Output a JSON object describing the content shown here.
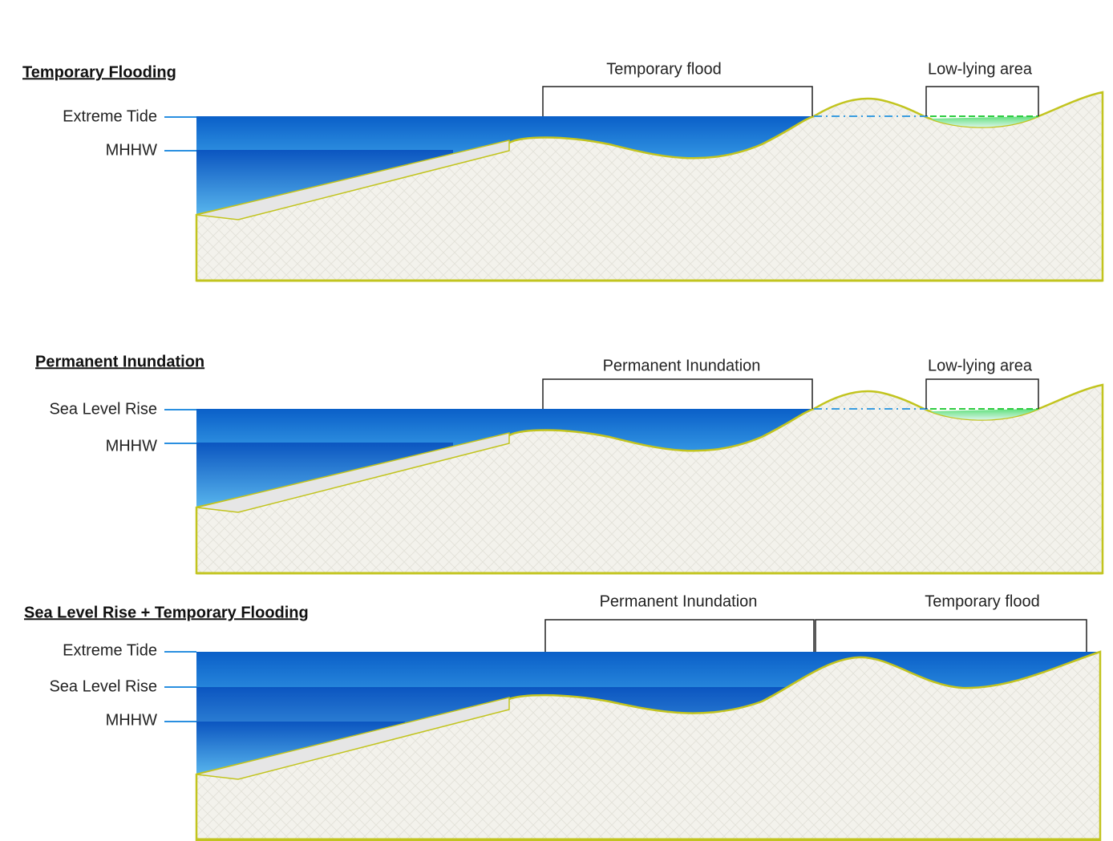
{
  "panels": [
    {
      "title": "Temporary Flooding",
      "levels": [
        "Extreme Tide",
        "MHHW"
      ],
      "brackets": [
        "Temporary flood",
        "Low-lying area"
      ]
    },
    {
      "title": "Permanent Inundation",
      "levels": [
        "Sea Level Rise",
        "MHHW"
      ],
      "brackets": [
        "Permanent Inundation",
        "Low-lying area"
      ]
    },
    {
      "title": "Sea Level Rise + Temporary Flooding",
      "levels": [
        "Extreme Tide",
        "Sea Level Rise",
        "MHHW"
      ],
      "brackets": [
        "Permanent Inundation",
        "Temporary flood"
      ]
    }
  ]
}
